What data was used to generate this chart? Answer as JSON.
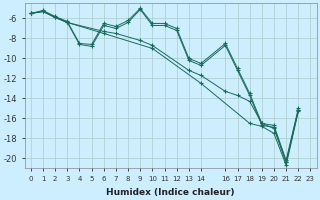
{
  "title": "",
  "xlabel": "Humidex (Indice chaleur)",
  "background_color": "#cceeff",
  "grid_color": "#aacccc",
  "line_color": "#1a6b5a",
  "xlim": [
    -0.5,
    23.5
  ],
  "ylim": [
    -21.0,
    -4.5
  ],
  "yticks": [
    -6,
    -8,
    -10,
    -12,
    -14,
    -16,
    -18,
    -20
  ],
  "ytick_labels": [
    "-6",
    "-8",
    "-10",
    "-12",
    "-14",
    "-16",
    "-18",
    "-20"
  ],
  "xtick_positions": [
    0,
    1,
    2,
    3,
    4,
    5,
    6,
    7,
    8,
    9,
    10,
    11,
    12,
    13,
    14,
    16,
    17,
    18,
    19,
    20,
    21,
    22,
    23
  ],
  "xtick_labels": [
    "0",
    "1",
    "2",
    "3",
    "4",
    "5",
    "6",
    "7",
    "8",
    "9",
    "10",
    "11",
    "12",
    "13",
    "14",
    "16",
    "17",
    "18",
    "19",
    "20",
    "21",
    "22",
    "23"
  ],
  "line1_x": [
    0,
    1,
    2,
    3,
    4,
    5,
    6,
    7,
    8,
    9,
    10,
    11,
    12,
    13,
    14,
    16,
    17,
    18,
    19,
    20,
    21,
    22
  ],
  "line1_y": [
    -5.5,
    -5.2,
    -5.8,
    -6.3,
    -8.5,
    -8.6,
    -6.5,
    -6.8,
    -6.2,
    -5.0,
    -6.5,
    -6.5,
    -7.0,
    -10.0,
    -10.5,
    -8.5,
    -11.0,
    -13.5,
    -16.5,
    -16.7,
    -20.2,
    -15.0
  ],
  "line2_x": [
    0,
    1,
    2,
    3,
    4,
    5,
    6,
    7,
    8,
    9,
    10,
    11,
    12,
    13,
    14,
    16,
    17,
    18,
    19,
    20,
    21,
    22
  ],
  "line2_y": [
    -5.5,
    -5.3,
    -5.9,
    -6.4,
    -8.6,
    -8.8,
    -6.7,
    -7.0,
    -6.4,
    -5.1,
    -6.7,
    -6.7,
    -7.2,
    -10.2,
    -10.7,
    -8.7,
    -11.2,
    -13.7,
    -16.7,
    -16.9,
    -20.4,
    -15.2
  ],
  "line3_x": [
    0,
    1,
    2,
    3,
    6,
    7,
    9,
    10,
    13,
    14,
    16,
    17,
    18,
    19,
    20,
    21,
    22
  ],
  "line3_y": [
    -5.5,
    -5.3,
    -5.9,
    -6.4,
    -7.3,
    -7.5,
    -8.2,
    -8.7,
    -11.2,
    -11.7,
    -13.3,
    -13.7,
    -14.3,
    -16.5,
    -17.0,
    -20.4,
    -15.2
  ],
  "line4_x": [
    0,
    1,
    3,
    6,
    10,
    14,
    18,
    19,
    20,
    21,
    22
  ],
  "line4_y": [
    -5.5,
    -5.3,
    -6.4,
    -7.5,
    -9.0,
    -12.5,
    -16.5,
    -16.8,
    -17.5,
    -20.7,
    -15.3
  ]
}
